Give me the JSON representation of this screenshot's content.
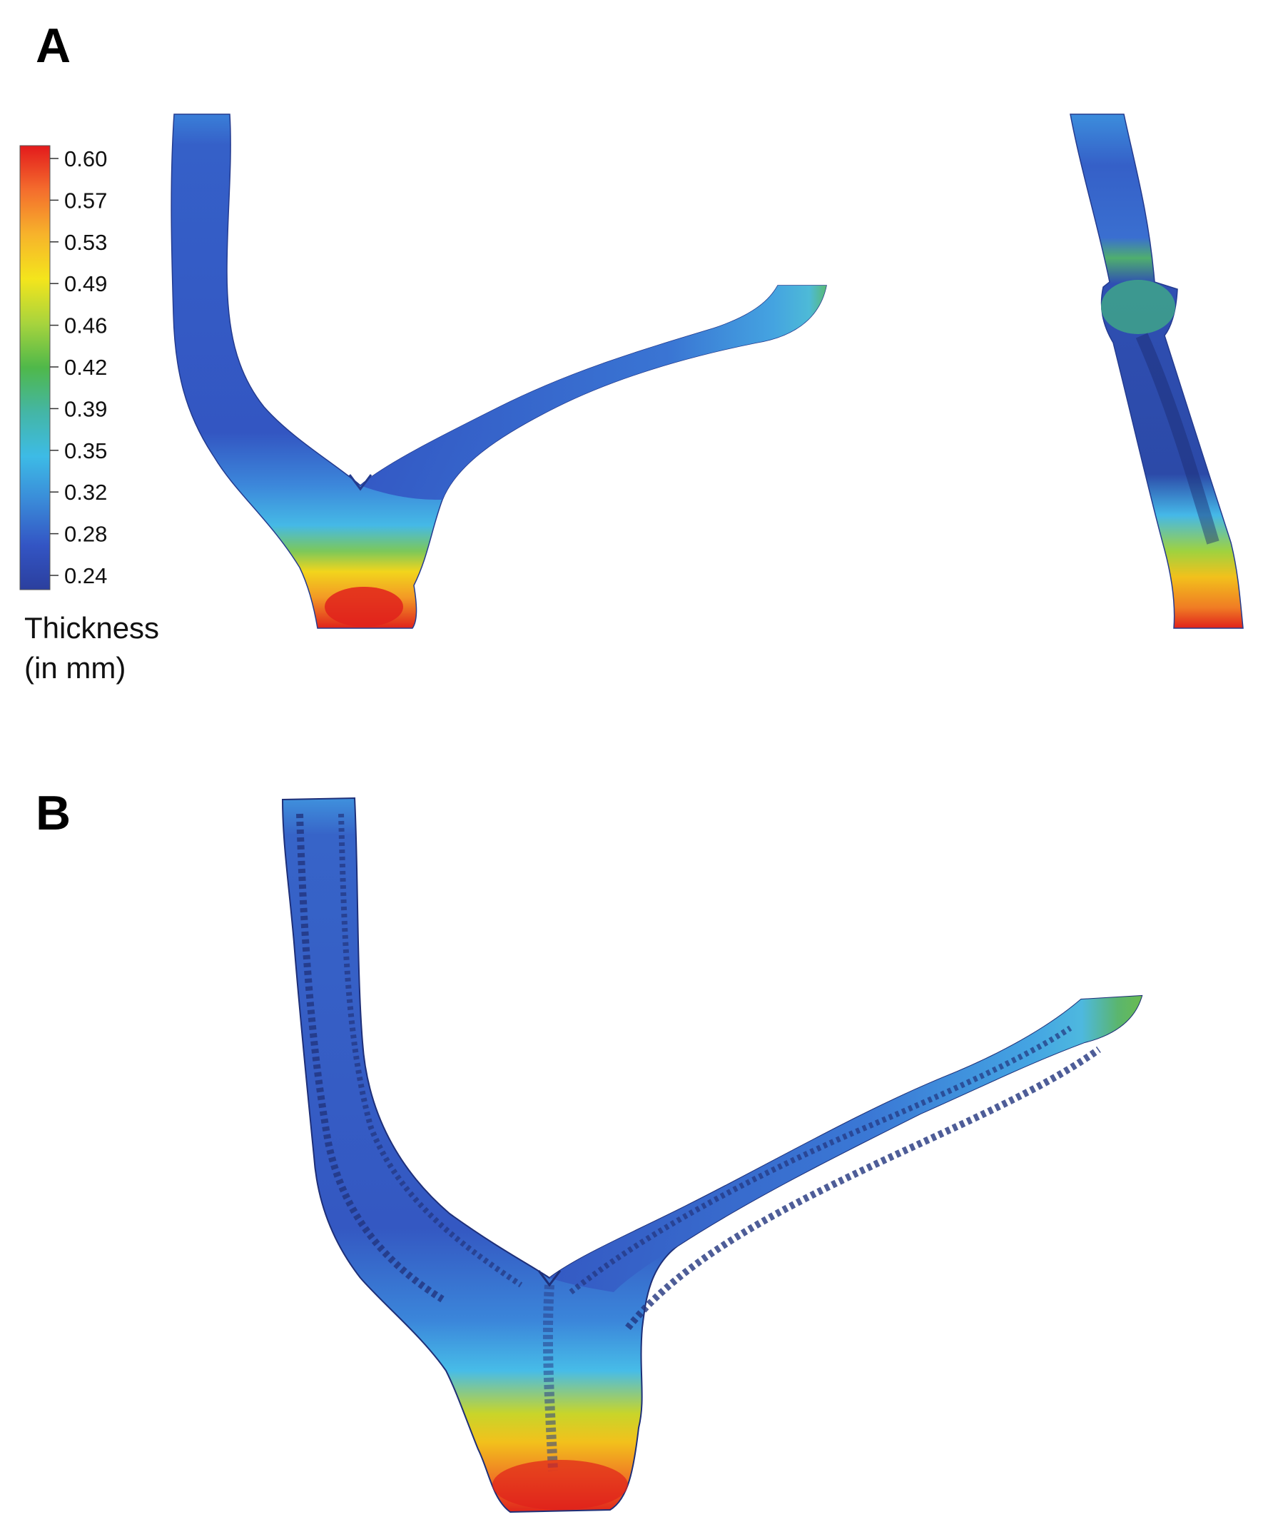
{
  "panels": {
    "a": {
      "label": "A"
    },
    "b": {
      "label": "B"
    }
  },
  "colorbar": {
    "title_line1": "Thickness",
    "title_line2": "(in mm)",
    "ticks": [
      "0.60",
      "0.57",
      "0.53",
      "0.49",
      "0.46",
      "0.42",
      "0.39",
      "0.35",
      "0.32",
      "0.28",
      "0.24"
    ],
    "gradient_stops": [
      "#e31a1c",
      "#f46d2d",
      "#f7b32b",
      "#f4e51c",
      "#a8d43d",
      "#4fb84a",
      "#44b6a5",
      "#3dbbe6",
      "#3a8ad8",
      "#3355c4",
      "#2b3f9e"
    ]
  },
  "colors": {
    "low": "#2f4fb3",
    "mid_low": "#3d8be0",
    "cyan": "#45b8e8",
    "green": "#4cae4c",
    "yellow": "#f0d21a",
    "orange": "#f39a25",
    "red": "#e0221c",
    "edge": "#1e2f78"
  }
}
